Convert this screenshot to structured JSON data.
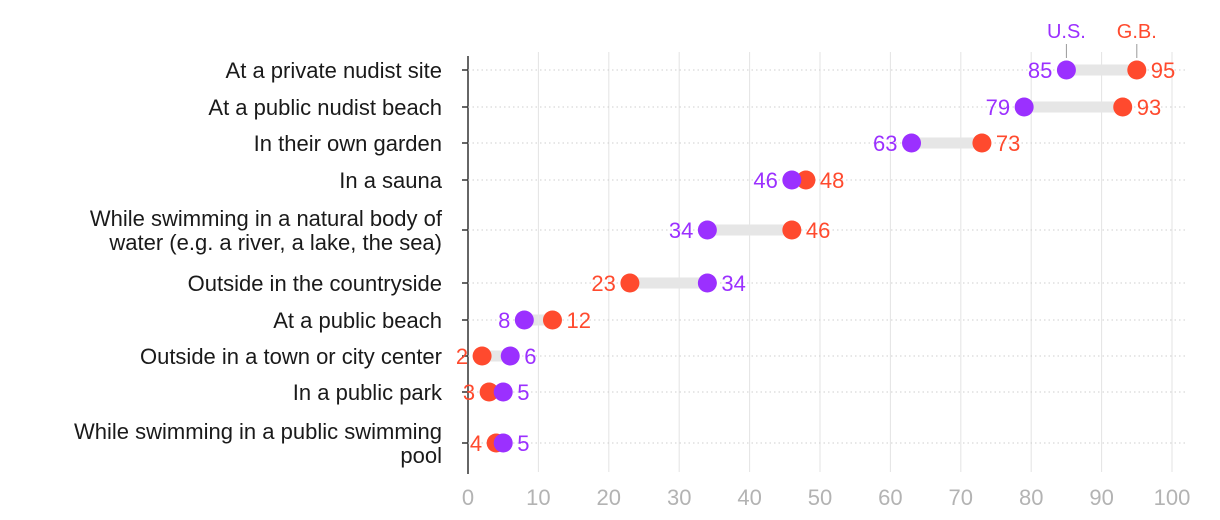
{
  "chart_data": {
    "type": "dumbbell",
    "xlim": [
      0,
      100
    ],
    "x_ticks": [
      0,
      10,
      20,
      30,
      40,
      50,
      60,
      70,
      80,
      90,
      100
    ],
    "grid": true,
    "legend_placement": "top-right",
    "colors": {
      "us": "#9b30ff",
      "gb": "#ff4a2e",
      "connector": "#e6e6e6",
      "grid": "#e3e3e3",
      "axis": "#333333"
    },
    "series": [
      {
        "key": "us",
        "name": "U.S."
      },
      {
        "key": "gb",
        "name": "G.B."
      }
    ],
    "categories": [
      {
        "label": [
          "At a private nudist site"
        ],
        "us": 85,
        "gb": 95
      },
      {
        "label": [
          "At a public nudist beach"
        ],
        "us": 79,
        "gb": 93
      },
      {
        "label": [
          "In their own garden"
        ],
        "us": 63,
        "gb": 73
      },
      {
        "label": [
          "In a sauna"
        ],
        "us": 46,
        "gb": 48
      },
      {
        "label": [
          "While swimming in a natural body of",
          "water (e.g. a river, a lake, the sea)"
        ],
        "us": 34,
        "gb": 46
      },
      {
        "label": [
          "Outside in the countryside"
        ],
        "us": 34,
        "gb": 23
      },
      {
        "label": [
          "At a public beach"
        ],
        "us": 8,
        "gb": 12
      },
      {
        "label": [
          "Outside in a town or city center"
        ],
        "us": 6,
        "gb": 2
      },
      {
        "label": [
          "In a public park"
        ],
        "us": 5,
        "gb": 3
      },
      {
        "label": [
          "While swimming in a public swimming",
          "pool"
        ],
        "us": 5,
        "gb": 4
      }
    ]
  }
}
